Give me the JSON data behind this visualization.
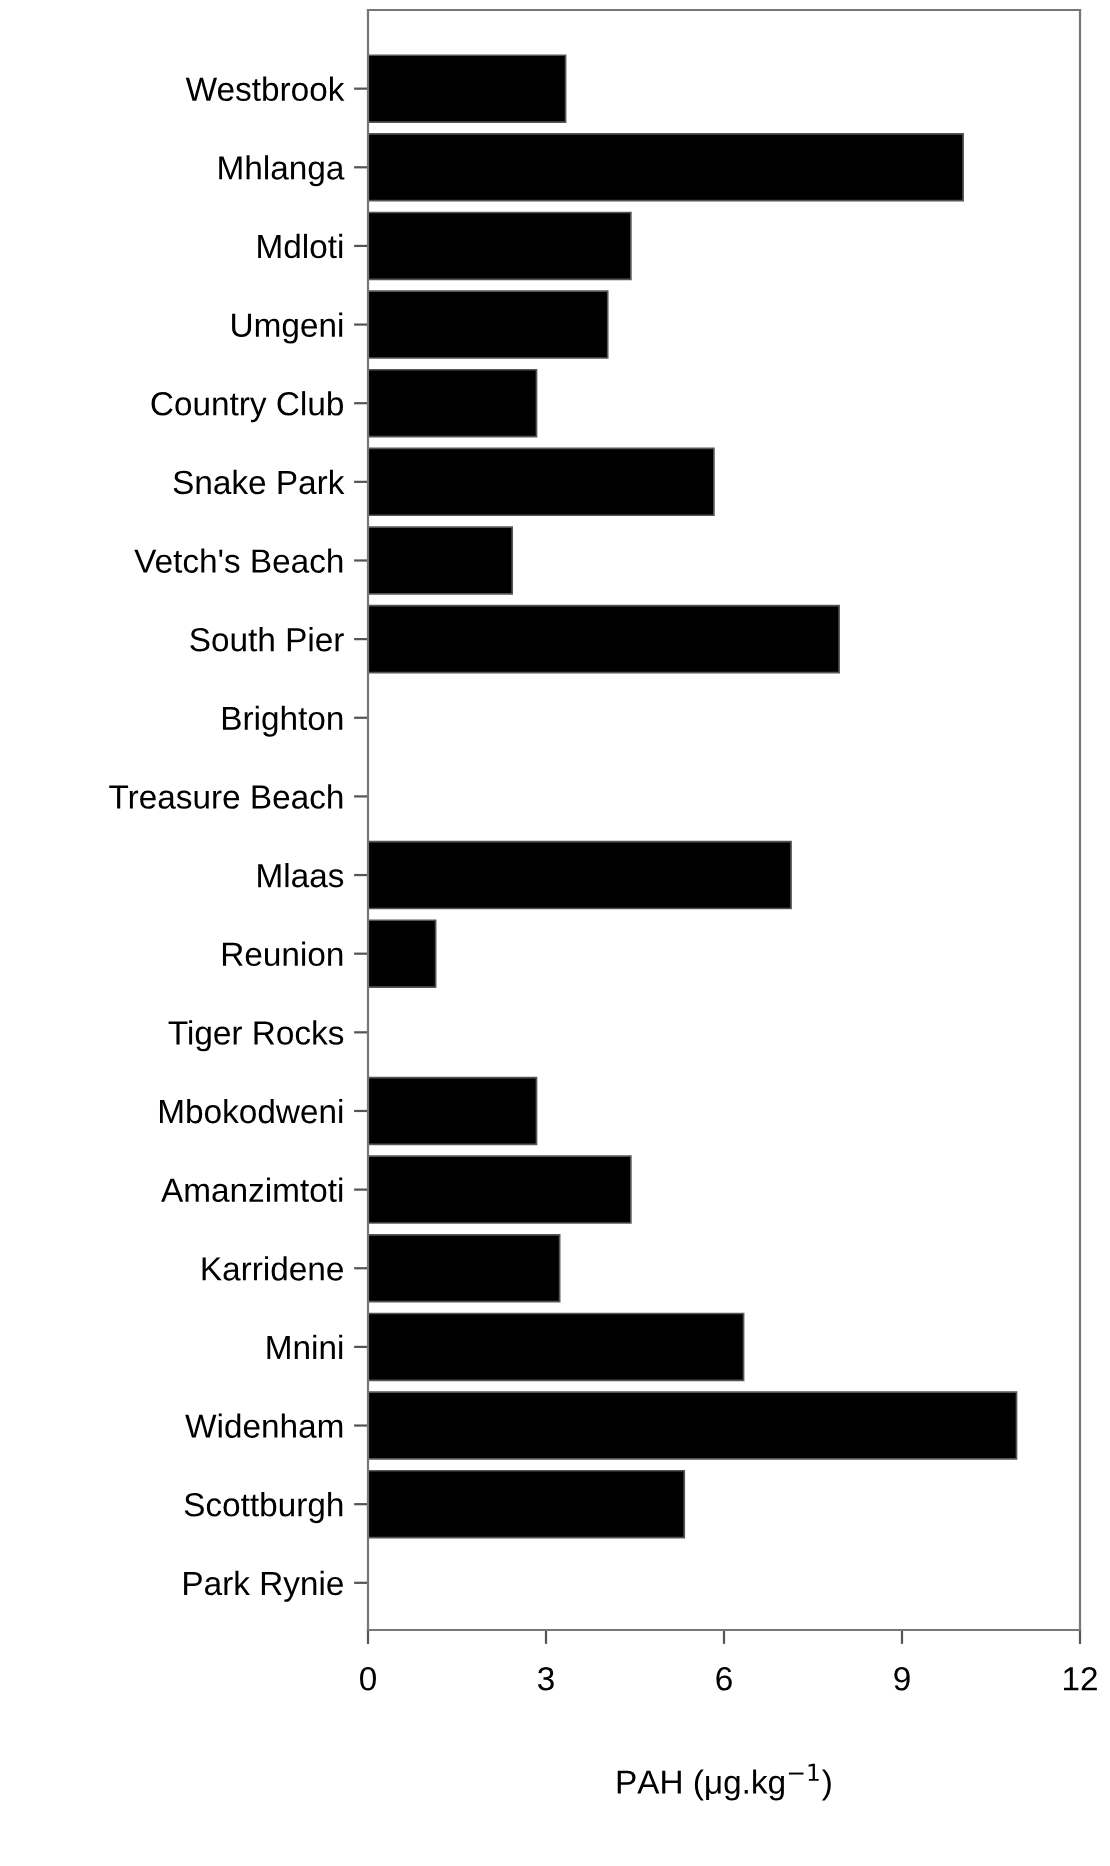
{
  "chart_data": {
    "type": "bar",
    "orientation": "horizontal",
    "xlabel": "PAH (μg.kg$^{−1}$)",
    "categories": [
      "Westbrook",
      "Mhlanga",
      "Mdloti",
      "Umgeni",
      "Country Club",
      "Snake Park",
      "Vetch's Beach",
      "South Pier",
      "Brighton",
      "Treasure Beach",
      "Mlaas",
      "Reunion",
      "Tiger Rocks",
      "Mbokodweni",
      "Amanzimtoti",
      "Karridene",
      "Mnini",
      "Widenham",
      "Scottburgh",
      "Park Rynie"
    ],
    "values": [
      3.33,
      10.03,
      4.43,
      4.04,
      2.84,
      5.83,
      2.43,
      7.94,
      null,
      null,
      7.13,
      1.14,
      null,
      2.84,
      4.43,
      3.23,
      6.33,
      10.93,
      5.33,
      null
    ],
    "color": "#000000",
    "xlim": [
      0,
      12
    ],
    "xticks": [
      0,
      3,
      6,
      9,
      12
    ],
    "grid": false,
    "legend": false
  }
}
